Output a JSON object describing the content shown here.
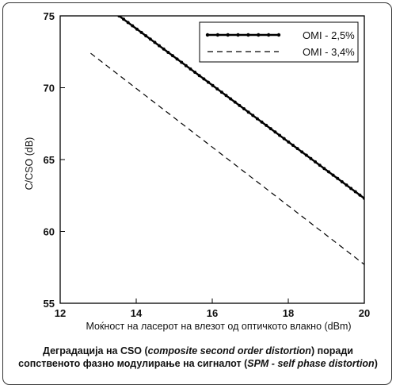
{
  "chart_data": {
    "type": "line",
    "xlabel": "Моќност на ласерот на влезот од оптичкото влакно (dBm)",
    "ylabel": "C/CSO (dB)",
    "xlim": [
      12,
      20
    ],
    "ylim": [
      55,
      75
    ],
    "xticks": [
      12,
      14,
      16,
      18,
      20
    ],
    "yticks": [
      55,
      60,
      65,
      70,
      75
    ],
    "grid": false,
    "legend_position": "top-right",
    "series": [
      {
        "name": "OMI - 2,5%",
        "style": "solid-with-markers",
        "color": "#000000",
        "x": [
          13.55,
          20.0
        ],
        "y": [
          75.0,
          62.3
        ]
      },
      {
        "name": "OMI - 3,4%",
        "style": "dashed",
        "color": "#000000",
        "x": [
          12.8,
          20.0
        ],
        "y": [
          72.4,
          57.7
        ]
      }
    ]
  },
  "caption": {
    "line1_pre": "Деградација на CSO (",
    "line1_em": "composite second order distortion",
    "line1_post": ") поради",
    "line2_pre": "сопственото фазно модулирање на сигналот (",
    "line2_em": "SPM - self phase distortion",
    "line2_post": ")"
  }
}
